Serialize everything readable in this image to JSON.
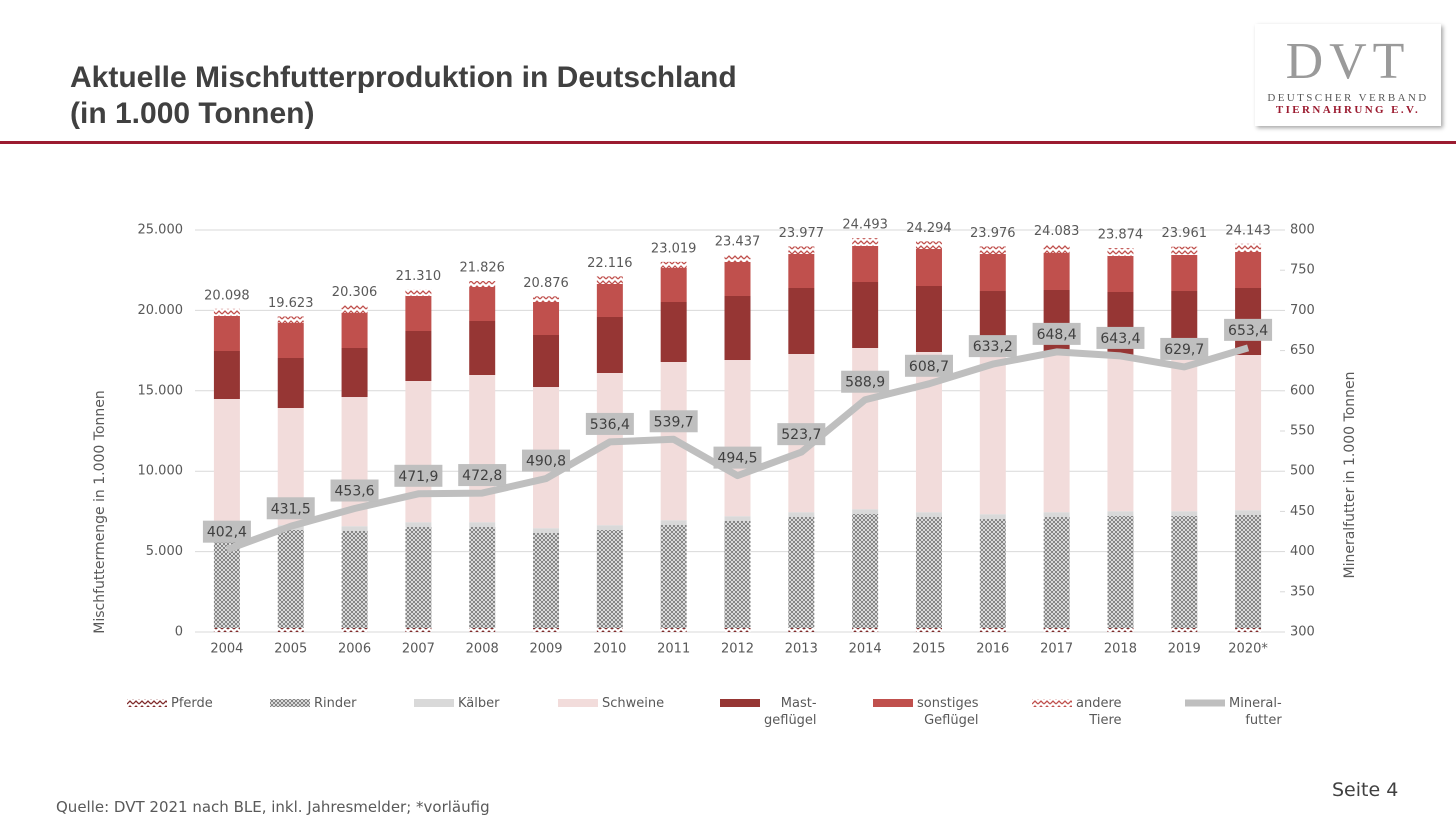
{
  "header": {
    "title": "Aktuelle Mischfutterproduktion in Deutschland\n(in 1.000 Tonnen)",
    "logo": {
      "mark": "DVT",
      "line1": "DEUTSCHER VERBAND",
      "line2": "TIERNAHRUNG E.V."
    }
  },
  "chart_data": {
    "type": "bar",
    "stacked": true,
    "ylabel": "Mischfuttermenge in 1.000 Tonnen",
    "y2label": "Mineralfutter in 1.000 Tonnen",
    "categories": [
      "2004",
      "2005",
      "2006",
      "2007",
      "2008",
      "2009",
      "2010",
      "2011",
      "2012",
      "2013",
      "2014",
      "2015",
      "2016",
      "2017",
      "2018",
      "2019",
      "2020*"
    ],
    "ylim": [
      0,
      25000
    ],
    "yticks": [
      0,
      {
        "value": 5000,
        "label": "5.000"
      },
      {
        "value": 10000,
        "label": "10.000"
      },
      {
        "value": 15000,
        "label": "15.000"
      },
      {
        "value": 20000,
        "label": "20.000"
      },
      {
        "value": 25000,
        "label": "25.000"
      }
    ],
    "y2lim": [
      300,
      800
    ],
    "y2ticks": [
      300,
      350,
      400,
      450,
      500,
      550,
      600,
      650,
      700,
      750,
      800
    ],
    "grid": true,
    "series": [
      {
        "name": "Pferde",
        "color": "#7f2a2a",
        "pattern": "zigzag",
        "values": [
          250,
          250,
          250,
          250,
          250,
          250,
          250,
          250,
          250,
          250,
          250,
          250,
          250,
          250,
          250,
          250,
          250
        ]
      },
      {
        "name": "Rinder",
        "color": "#808080",
        "pattern": "cross",
        "values": [
          6220,
          6093,
          6031,
          6280,
          6280,
          5907,
          6093,
          6404,
          6653,
          6902,
          7088,
          6902,
          6777,
          6902,
          6964,
          6964,
          7026
        ]
      },
      {
        "name": "Kälber",
        "color": "#d9d9d9",
        "values": [
          300,
          300,
          300,
          300,
          300,
          300,
          300,
          300,
          300,
          300,
          300,
          300,
          300,
          300,
          300,
          300,
          300
        ]
      },
      {
        "name": "Schweine",
        "color": "#f2dcdb",
        "values": [
          7720,
          7287,
          8033,
          8780,
          9153,
          8779,
          9464,
          9837,
          9712,
          9837,
          10024,
          9961,
          9775,
          9774,
          9588,
          9712,
          9650
        ]
      },
      {
        "name": "Mast-\ngeflügel",
        "color": "#963634",
        "values": [
          2985,
          3110,
          3048,
          3109,
          3358,
          3234,
          3483,
          3731,
          3981,
          4104,
          4104,
          4104,
          4104,
          4043,
          4042,
          3980,
          4167
        ]
      },
      {
        "name": "sonstiges\nGeflügel",
        "color": "#c0504d",
        "values": [
          2177,
          2176,
          2176,
          2177,
          2114,
          2052,
          2052,
          2115,
          2114,
          2114,
          2239,
          2301,
          2301,
          2301,
          2239,
          2239,
          2239
        ]
      },
      {
        "name": "andere\nTiere",
        "color": "#c0504d",
        "pattern": "zigzag",
        "values": [
          446,
          407,
          468,
          414,
          371,
          354,
          474,
          382,
          427,
          470,
          488,
          476,
          469,
          513,
          491,
          516,
          511
        ]
      },
      {
        "name": "Mineral-\nfutter",
        "color": "#bfbfbf",
        "type": "line",
        "axis": "y2",
        "values": [
          402.4,
          431.5,
          453.6,
          471.9,
          472.8,
          490.8,
          536.4,
          539.7,
          494.5,
          523.7,
          588.9,
          608.7,
          633.2,
          648.4,
          643.4,
          629.7,
          653.4
        ],
        "value_labels": [
          "402,4",
          "431,5",
          "453,6",
          "471,9",
          "472,8",
          "490,8",
          "536,4",
          "539,7",
          "494,5",
          "523,7",
          "588,9",
          "608,7",
          "633,2",
          "648,4",
          "643,4",
          "629,7",
          "653,4"
        ]
      }
    ],
    "totals": {
      "values": [
        20098,
        19623,
        20306,
        21310,
        21826,
        20876,
        22116,
        23019,
        23437,
        23977,
        24493,
        24294,
        23976,
        24083,
        23874,
        23961,
        24143
      ],
      "value_labels": [
        "20.098",
        "19.623",
        "20.306",
        "21.310",
        "21.826",
        "20.876",
        "22.116",
        "23.019",
        "23.437",
        "23.977",
        "24.493",
        "24.294",
        "23.976",
        "24.083",
        "23.874",
        "23.961",
        "24.143"
      ]
    }
  },
  "footer": {
    "source": "Quelle: DVT 2021 nach BLE, inkl. Jahresmelder; *vorläufig",
    "page": "Seite 4"
  }
}
